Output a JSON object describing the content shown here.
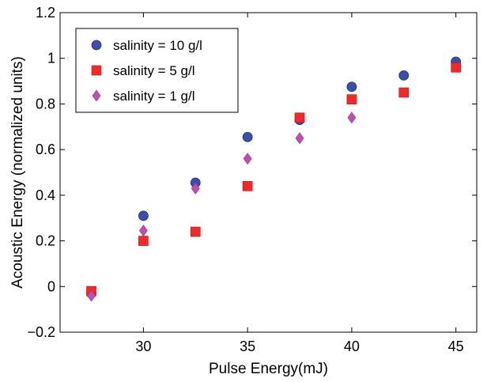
{
  "chart_data": {
    "type": "scatter",
    "title": "",
    "xlabel": "Pulse Energy(mJ)",
    "ylabel": "Acoustic Energy (normalized units)",
    "xlim": [
      26,
      46
    ],
    "ylim": [
      -0.2,
      1.2
    ],
    "xticks": [
      30,
      35,
      40,
      45
    ],
    "xtick_labels": [
      "30",
      "35",
      "40",
      "45"
    ],
    "yticks": [
      -0.2,
      0,
      0.2,
      0.4,
      0.6,
      0.8,
      1,
      1.2
    ],
    "ytick_labels": [
      "−0.2",
      "0",
      "0.2",
      "0.4",
      "0.6",
      "0.8",
      "1",
      "1.2"
    ],
    "grid": false,
    "legend_position": "top-left",
    "series": [
      {
        "name": "salinity = 10 g/l",
        "marker": "circle",
        "color": "#3b4fa8",
        "x": [
          27.5,
          30,
          32.5,
          35,
          37.5,
          40,
          42.5,
          45
        ],
        "y": [
          -0.03,
          0.31,
          0.455,
          0.655,
          0.73,
          0.875,
          0.925,
          0.985
        ]
      },
      {
        "name": "salinity = 5 g/l",
        "marker": "square",
        "color": "#ee2a2a",
        "x": [
          27.5,
          30,
          32.5,
          35,
          37.5,
          40,
          42.5,
          45
        ],
        "y": [
          -0.02,
          0.2,
          0.24,
          0.44,
          0.74,
          0.82,
          0.85,
          0.96
        ]
      },
      {
        "name": "salinity = 1 g/l",
        "marker": "diamond",
        "color": "#c050b0",
        "x": [
          27.5,
          30,
          32.5,
          35,
          37.5,
          40
        ],
        "y": [
          -0.04,
          0.245,
          0.43,
          0.56,
          0.65,
          0.74
        ]
      }
    ]
  }
}
